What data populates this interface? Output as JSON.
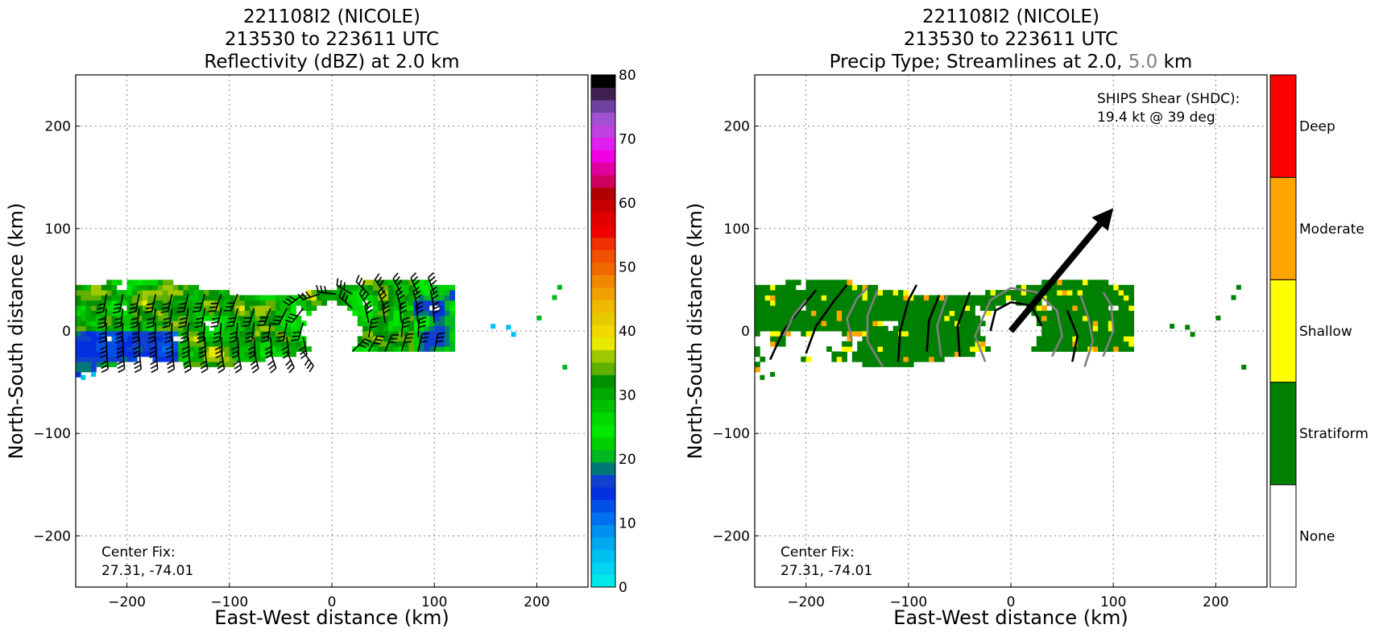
{
  "chart_data": [
    {
      "type": "heatmap",
      "title": [
        "221108I2 (NICOLE)",
        "213530 to 223611 UTC",
        "Reflectivity (dBZ) at 2.0 km"
      ],
      "xlabel": "East-West distance (km)",
      "ylabel": "North-South distance (km)",
      "xlim": [
        -250,
        250
      ],
      "ylim": [
        -250,
        250
      ],
      "xticks": [
        -200,
        -100,
        0,
        100,
        200
      ],
      "yticks": [
        -200,
        -100,
        0,
        100,
        200
      ],
      "xtick_labels": [
        "−200",
        "−100",
        "0",
        "100",
        "200"
      ],
      "ytick_labels": [
        "−200",
        "−100",
        "0",
        "100",
        "200"
      ],
      "grid": true,
      "colorbar": {
        "range": [
          0,
          80
        ],
        "ticks": [
          0,
          10,
          20,
          30,
          40,
          50,
          60,
          70,
          80
        ],
        "colors": [
          "#00e8e8",
          "#00d4f0",
          "#00c0f0",
          "#00a8f0",
          "#0090f0",
          "#0070f0",
          "#0050e8",
          "#0030e0",
          "#1040d0",
          "#007878",
          "#00b820",
          "#00d000",
          "#00e800",
          "#00d800",
          "#00c000",
          "#00a800",
          "#009000",
          "#60b000",
          "#a0c800",
          "#e8e800",
          "#f0d800",
          "#e8c800",
          "#f0b800",
          "#f0a000",
          "#f08800",
          "#f06800",
          "#f05000",
          "#f03000",
          "#f00000",
          "#e00000",
          "#c80000",
          "#b00000",
          "#d00060",
          "#e000a0",
          "#f000e0",
          "#e020f0",
          "#c040e0",
          "#a050d0",
          "#7040a0",
          "#402050",
          "#000000"
        ]
      },
      "annotation": {
        "label": "Center Fix:",
        "value": "27.31, -74.01"
      }
    },
    {
      "type": "heatmap",
      "title_lines": [
        "221108I2 (NICOLE)",
        "213530 to 223611 UTC"
      ],
      "title_third_prefix": "Precip Type; Streamlines at 2.0,",
      "title_third_grey": "5.0",
      "title_third_suffix": "km",
      "xlabel": "East-West distance (km)",
      "ylabel": "North-South distance (km)",
      "xlim": [
        -250,
        250
      ],
      "ylim": [
        -250,
        250
      ],
      "xticks": [
        -200,
        -100,
        0,
        100,
        200
      ],
      "yticks": [
        -200,
        -100,
        0,
        100,
        200
      ],
      "xtick_labels": [
        "−200",
        "−100",
        "0",
        "100",
        "200"
      ],
      "ytick_labels": [
        "−200",
        "−100",
        "0",
        "100",
        "200"
      ],
      "grid": true,
      "categories": [
        "None",
        "Stratiform",
        "Shallow",
        "Moderate",
        "Deep"
      ],
      "category_colors": [
        "#ffffff",
        "#008000",
        "#ffff00",
        "#ffa500",
        "#ff0000"
      ],
      "shear": {
        "label": "SHIPS Shear (SHDC):",
        "value": "19.4 kt @ 39 deg",
        "vector_end": [
          100,
          120
        ]
      },
      "annotation": {
        "label": "Center Fix:",
        "value": "27.31, -74.01"
      }
    }
  ]
}
